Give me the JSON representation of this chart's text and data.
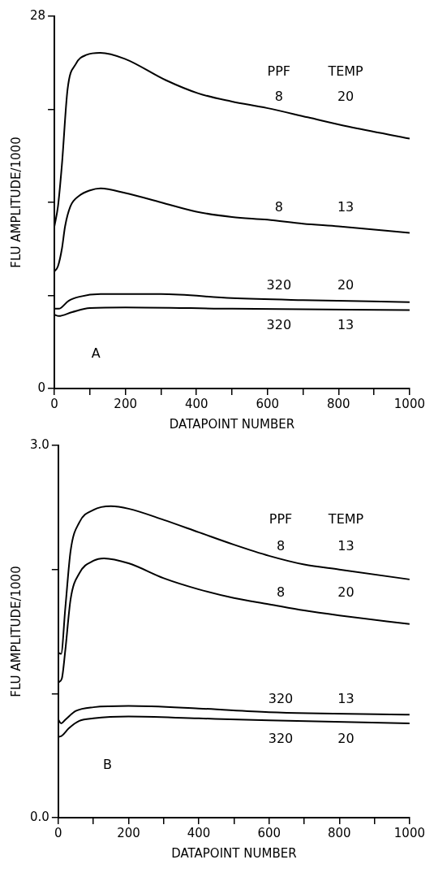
{
  "chart_data": [
    {
      "type": "line",
      "xlabel": "DATAPOINT NUMBER",
      "ylabel": "FLU AMPLITUDE/1000",
      "xlim": [
        0,
        1000
      ],
      "ylim": [
        0,
        28
      ],
      "xticks": [
        0,
        {
          "value": 100,
          "label": null
        },
        200,
        {
          "value": 300,
          "label": null
        },
        400,
        {
          "value": 500,
          "label": null
        },
        600,
        {
          "value": 700,
          "label": null
        },
        800,
        {
          "value": 900,
          "label": null
        },
        1000
      ],
      "yticks": [
        0,
        {
          "value": 7,
          "label": null
        },
        {
          "value": 14,
          "label": null
        },
        {
          "value": 21,
          "label": null
        },
        28
      ],
      "grid": false,
      "legend": false,
      "marker": "none",
      "line_style": "solid",
      "series": [
        {
          "color": "#000000",
          "x": [
            0,
            10,
            21,
            37,
            60,
            91,
            129,
            198,
            313,
            405,
            498,
            598,
            713,
            828,
            1000
          ],
          "values": [
            12.2,
            13.7,
            16.8,
            22.5,
            24.4,
            25.1,
            25.25,
            24.8,
            23.2,
            22.2,
            21.6,
            21.1,
            20.4,
            19.7,
            18.8
          ]
        },
        {
          "color": "#000000",
          "x": [
            0,
            10,
            21,
            30,
            45,
            70,
            100,
            130,
            200,
            300,
            400,
            500,
            600,
            700,
            800,
            1000
          ],
          "values": [
            8.8,
            9.2,
            10.5,
            12.2,
            13.7,
            14.5,
            14.9,
            15.05,
            14.7,
            14.0,
            13.3,
            12.9,
            12.7,
            12.4,
            12.2,
            11.7
          ]
        },
        {
          "color": "#000000",
          "x": [
            0,
            12,
            40,
            70,
            130,
            300,
            500,
            700,
            1000
          ],
          "values": [
            6.0,
            6.0,
            6.6,
            6.9,
            7.1,
            7.1,
            6.8,
            6.65,
            6.5
          ]
        },
        {
          "color": "#000000",
          "x": [
            0,
            12,
            50,
            100,
            200,
            500,
            1000
          ],
          "values": [
            5.55,
            5.45,
            5.75,
            6.05,
            6.1,
            6.0,
            5.9
          ]
        }
      ],
      "annotations": [
        "PPF",
        "TEMP",
        "8",
        "20",
        "8",
        "13",
        "320",
        "20",
        "320",
        "13",
        "A"
      ]
    },
    {
      "type": "line",
      "xlabel": "DATAPOINT NUMBER",
      "ylabel": "FLU AMPLITUDE/1000",
      "xlim": [
        0,
        1000
      ],
      "ylim": [
        0,
        3
      ],
      "xticks": [
        0,
        {
          "value": 100,
          "label": null
        },
        200,
        {
          "value": 300,
          "label": null
        },
        400,
        {
          "value": 500,
          "label": null
        },
        600,
        {
          "value": 700,
          "label": null
        },
        800,
        {
          "value": 900,
          "label": null
        },
        1000
      ],
      "yticks": [
        {
          "value": 0,
          "label": "0.0"
        },
        {
          "value": 1,
          "label": null
        },
        {
          "value": 2,
          "label": null
        },
        {
          "value": 3,
          "label": "3.0"
        }
      ],
      "grid": false,
      "legend": false,
      "marker": "none",
      "line_style": "solid",
      "series": [
        {
          "color": "#000000",
          "x": [
            0,
            8,
            20,
            35,
            60,
            100,
            150,
            200,
            300,
            400,
            500,
            600,
            700,
            800,
            1000
          ],
          "values": [
            1.33,
            1.32,
            1.69,
            2.15,
            2.38,
            2.48,
            2.51,
            2.49,
            2.4,
            2.3,
            2.2,
            2.11,
            2.04,
            2.0,
            1.92
          ]
        },
        {
          "color": "#000000",
          "x": [
            0,
            10,
            20,
            35,
            60,
            100,
            130,
            200,
            300,
            400,
            500,
            600,
            700,
            800,
            1000
          ],
          "values": [
            1.09,
            1.12,
            1.35,
            1.76,
            1.97,
            2.07,
            2.09,
            2.05,
            1.93,
            1.84,
            1.77,
            1.72,
            1.67,
            1.63,
            1.56
          ]
        },
        {
          "color": "#000000",
          "x": [
            0,
            8,
            20,
            50,
            100,
            200,
            400,
            600,
            1000
          ],
          "values": [
            0.79,
            0.76,
            0.79,
            0.86,
            0.89,
            0.9,
            0.88,
            0.85,
            0.83
          ]
        },
        {
          "color": "#000000",
          "x": [
            0,
            10,
            30,
            60,
            100,
            200,
            400,
            600,
            1000
          ],
          "values": [
            0.65,
            0.66,
            0.72,
            0.78,
            0.8,
            0.815,
            0.8,
            0.785,
            0.76
          ]
        }
      ],
      "annotations": [
        "PPF",
        "TEMP",
        "8",
        "13",
        "8",
        "20",
        "320",
        "13",
        "320",
        "20",
        "B"
      ]
    }
  ]
}
